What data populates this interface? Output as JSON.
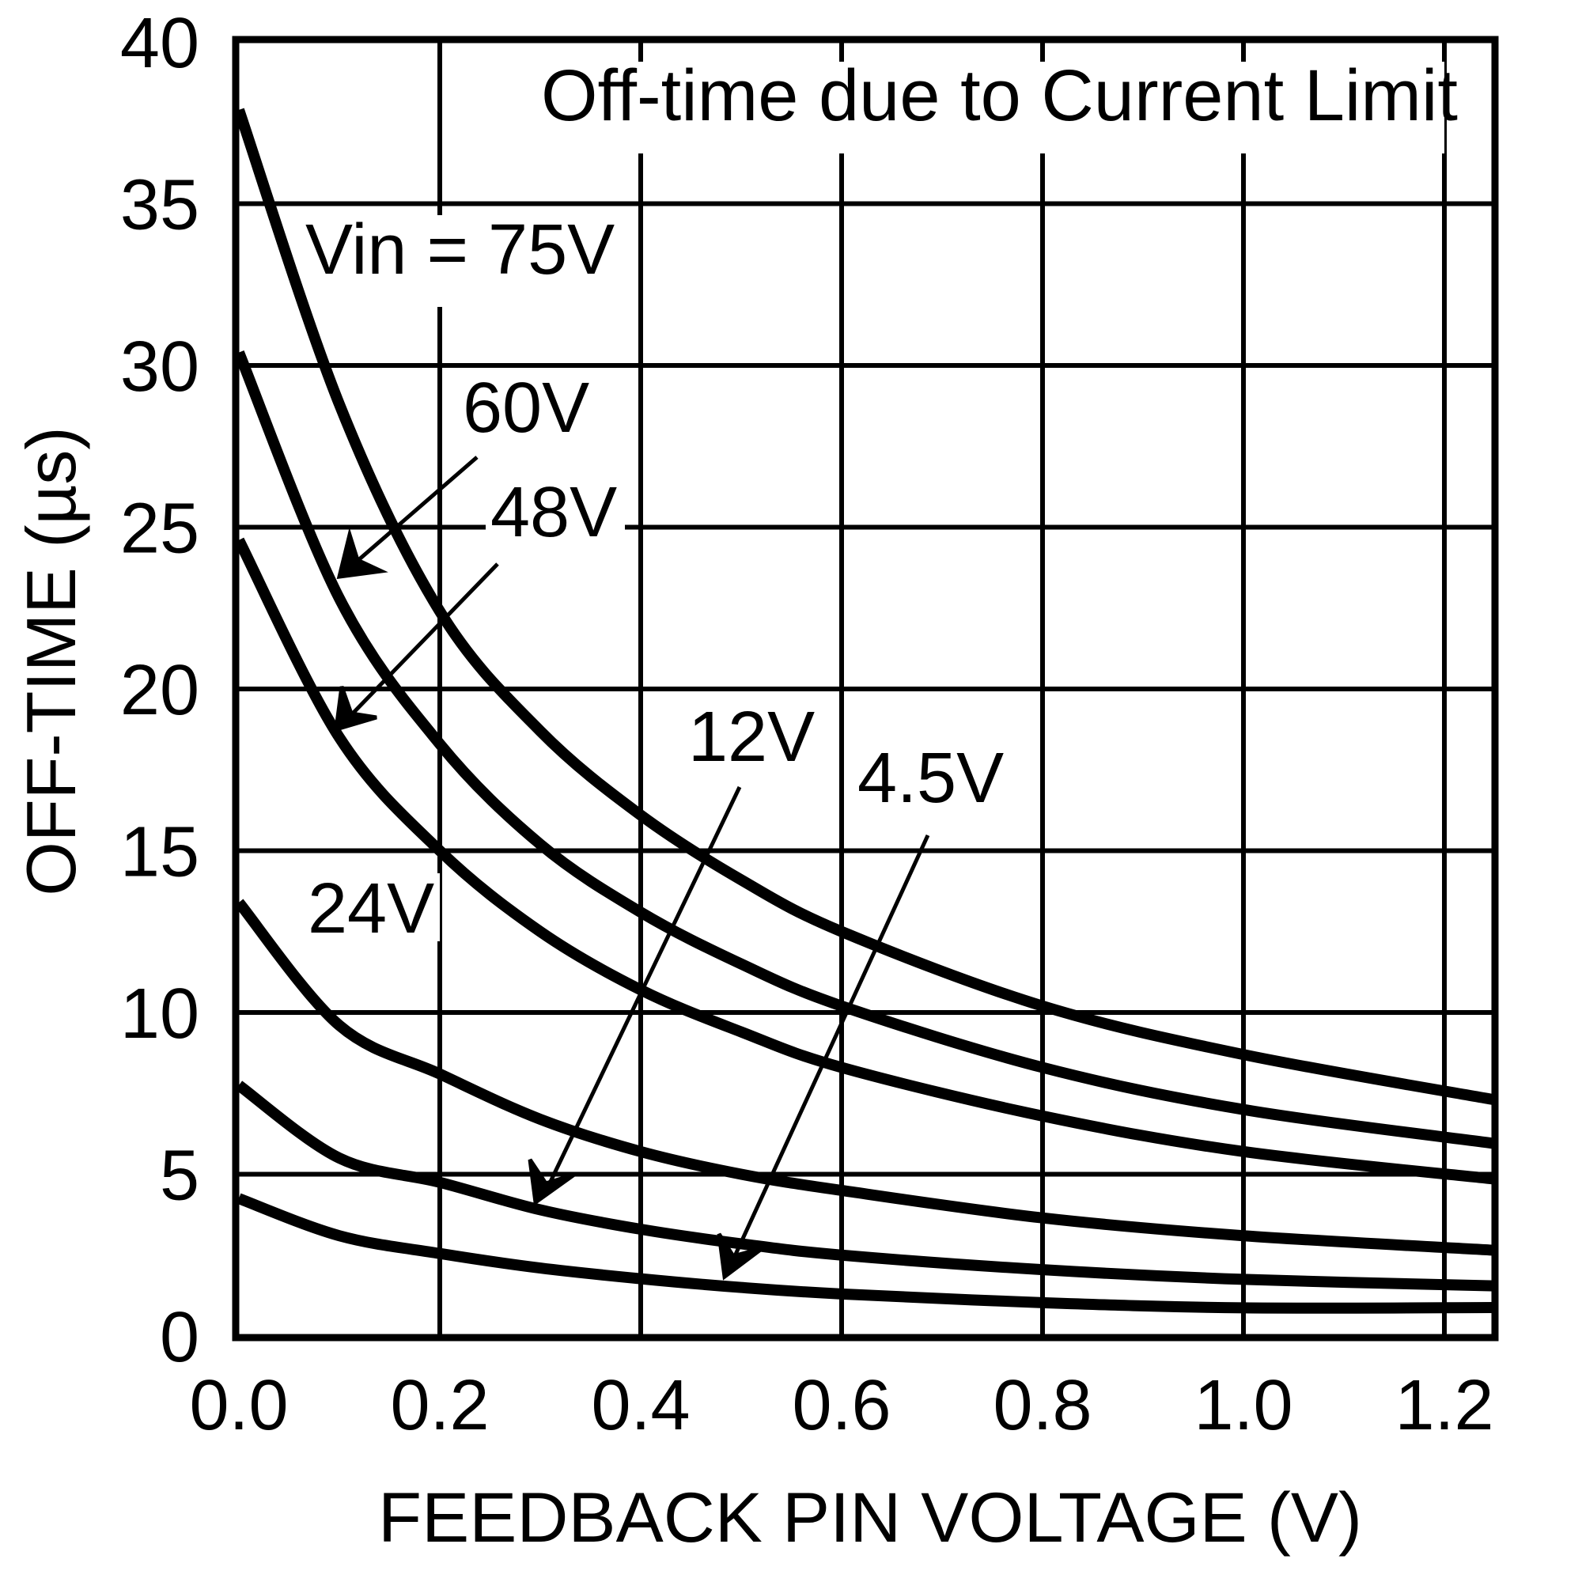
{
  "chart_data": {
    "type": "line",
    "title": "",
    "annotation": "Off-time due to Current Limit",
    "xlabel": "FEEDBACK PIN VOLTAGE (V)",
    "ylabel": "OFF-TIME (µs)",
    "xlim": [
      0,
      1.25
    ],
    "ylim": [
      0,
      40
    ],
    "grid": true,
    "legend_position": "inline labels with arrows",
    "x_ticks": [
      "0.0",
      "0.2",
      "0.4",
      "0.6",
      "0.8",
      "1.0",
      "1.2"
    ],
    "y_ticks": [
      "0",
      "5",
      "10",
      "15",
      "20",
      "25",
      "30",
      "35",
      "40"
    ],
    "x": [
      0,
      0.1,
      0.2,
      0.3,
      0.4,
      0.5,
      0.6,
      0.8,
      1.0,
      1.25
    ],
    "series": [
      {
        "name": "Vin = 75V",
        "values": [
          37.9,
          28.8,
          22.4,
          18.7,
          16.1,
          14.1,
          12.5,
          10.2,
          8.7,
          7.3
        ]
      },
      {
        "name": "60V",
        "values": [
          30.4,
          22.8,
          18.3,
          15.2,
          13.1,
          11.5,
          10.2,
          8.3,
          7.0,
          5.95
        ]
      },
      {
        "name": "48V",
        "values": [
          24.6,
          18.5,
          15.0,
          12.5,
          10.7,
          9.4,
          8.3,
          6.8,
          5.7,
          4.85
        ]
      },
      {
        "name": "24V",
        "values": [
          13.4,
          9.6,
          8.1,
          6.7,
          5.7,
          5.0,
          4.5,
          3.65,
          3.1,
          2.65
        ]
      },
      {
        "name": "12V",
        "values": [
          7.75,
          5.5,
          4.75,
          3.9,
          3.3,
          2.85,
          2.5,
          2.05,
          1.75,
          1.55
        ]
      },
      {
        "name": "4.5V",
        "values": [
          4.25,
          3.1,
          2.55,
          2.1,
          1.77,
          1.5,
          1.3,
          1.03,
          0.87,
          0.88
        ]
      }
    ]
  },
  "labels": {
    "annotation": "Off-time due to Current Limit",
    "vin75": "Vin = 75V",
    "v60": "60V",
    "v48": "48V",
    "v24": "24V",
    "v12": "12V",
    "v45": "4.5V",
    "xlabel": "FEEDBACK PIN VOLTAGE (V)",
    "ylabel": "OFF-TIME (µs)"
  },
  "colors": {
    "line": "#000000",
    "background": "#ffffff"
  }
}
